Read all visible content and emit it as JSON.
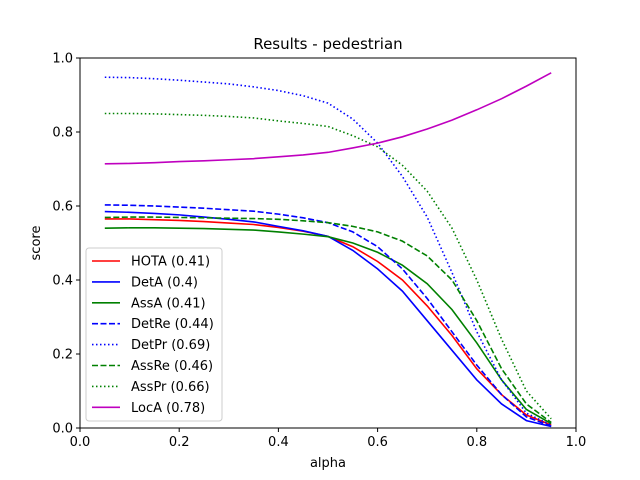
{
  "chart_data": {
    "type": "line",
    "title": "Results - pedestrian",
    "xlabel": "alpha",
    "ylabel": "score",
    "xlim": [
      0.0,
      1.0
    ],
    "ylim": [
      0.0,
      1.0
    ],
    "xticks": [
      "0.0",
      "0.2",
      "0.4",
      "0.6",
      "0.8",
      "1.0"
    ],
    "yticks": [
      "0.0",
      "0.2",
      "0.4",
      "0.6",
      "0.8",
      "1.0"
    ],
    "grid": false,
    "legend_position": "lower-left",
    "x": [
      0.05,
      0.1,
      0.15,
      0.2,
      0.25,
      0.3,
      0.35,
      0.4,
      0.45,
      0.5,
      0.55,
      0.6,
      0.65,
      0.7,
      0.75,
      0.8,
      0.85,
      0.9,
      0.95
    ],
    "series": [
      {
        "name": "HOTA (0.41)",
        "color": "#ff0000",
        "dash": "solid",
        "values": [
          0.565,
          0.565,
          0.563,
          0.561,
          0.558,
          0.554,
          0.55,
          0.542,
          0.532,
          0.518,
          0.49,
          0.45,
          0.4,
          0.33,
          0.25,
          0.16,
          0.09,
          0.035,
          0.008
        ]
      },
      {
        "name": "DetA (0.4)",
        "color": "#0000ff",
        "dash": "solid",
        "values": [
          0.585,
          0.583,
          0.58,
          0.576,
          0.57,
          0.564,
          0.557,
          0.545,
          0.533,
          0.518,
          0.48,
          0.43,
          0.37,
          0.29,
          0.21,
          0.13,
          0.065,
          0.02,
          0.004
        ]
      },
      {
        "name": "AssA (0.41)",
        "color": "#008000",
        "dash": "solid",
        "values": [
          0.54,
          0.541,
          0.541,
          0.54,
          0.539,
          0.537,
          0.535,
          0.53,
          0.524,
          0.517,
          0.5,
          0.475,
          0.44,
          0.39,
          0.32,
          0.23,
          0.13,
          0.05,
          0.012
        ]
      },
      {
        "name": "DetRe (0.44)",
        "color": "#0000ff",
        "dash": "dashed",
        "values": [
          0.603,
          0.602,
          0.6,
          0.597,
          0.594,
          0.59,
          0.586,
          0.578,
          0.568,
          0.555,
          0.53,
          0.49,
          0.43,
          0.35,
          0.26,
          0.17,
          0.09,
          0.03,
          0.005
        ]
      },
      {
        "name": "DetPr (0.69)",
        "color": "#0000ff",
        "dash": "dotted",
        "values": [
          0.948,
          0.947,
          0.944,
          0.94,
          0.935,
          0.93,
          0.922,
          0.912,
          0.898,
          0.878,
          0.835,
          0.77,
          0.68,
          0.57,
          0.42,
          0.26,
          0.13,
          0.04,
          0.008
        ]
      },
      {
        "name": "AssRe (0.46)",
        "color": "#008000",
        "dash": "dashed",
        "values": [
          0.569,
          0.57,
          0.57,
          0.569,
          0.568,
          0.567,
          0.566,
          0.564,
          0.56,
          0.555,
          0.545,
          0.53,
          0.505,
          0.465,
          0.4,
          0.29,
          0.16,
          0.065,
          0.015
        ]
      },
      {
        "name": "AssPr (0.66)",
        "color": "#008000",
        "dash": "dotted",
        "values": [
          0.85,
          0.85,
          0.849,
          0.847,
          0.845,
          0.842,
          0.838,
          0.83,
          0.823,
          0.815,
          0.79,
          0.76,
          0.71,
          0.64,
          0.54,
          0.4,
          0.24,
          0.1,
          0.025
        ]
      },
      {
        "name": "LocA (0.78)",
        "color": "#bf00bf",
        "dash": "solid",
        "values": [
          0.714,
          0.715,
          0.717,
          0.72,
          0.722,
          0.725,
          0.728,
          0.733,
          0.738,
          0.745,
          0.757,
          0.77,
          0.787,
          0.808,
          0.832,
          0.86,
          0.89,
          0.924,
          0.96
        ]
      }
    ]
  }
}
